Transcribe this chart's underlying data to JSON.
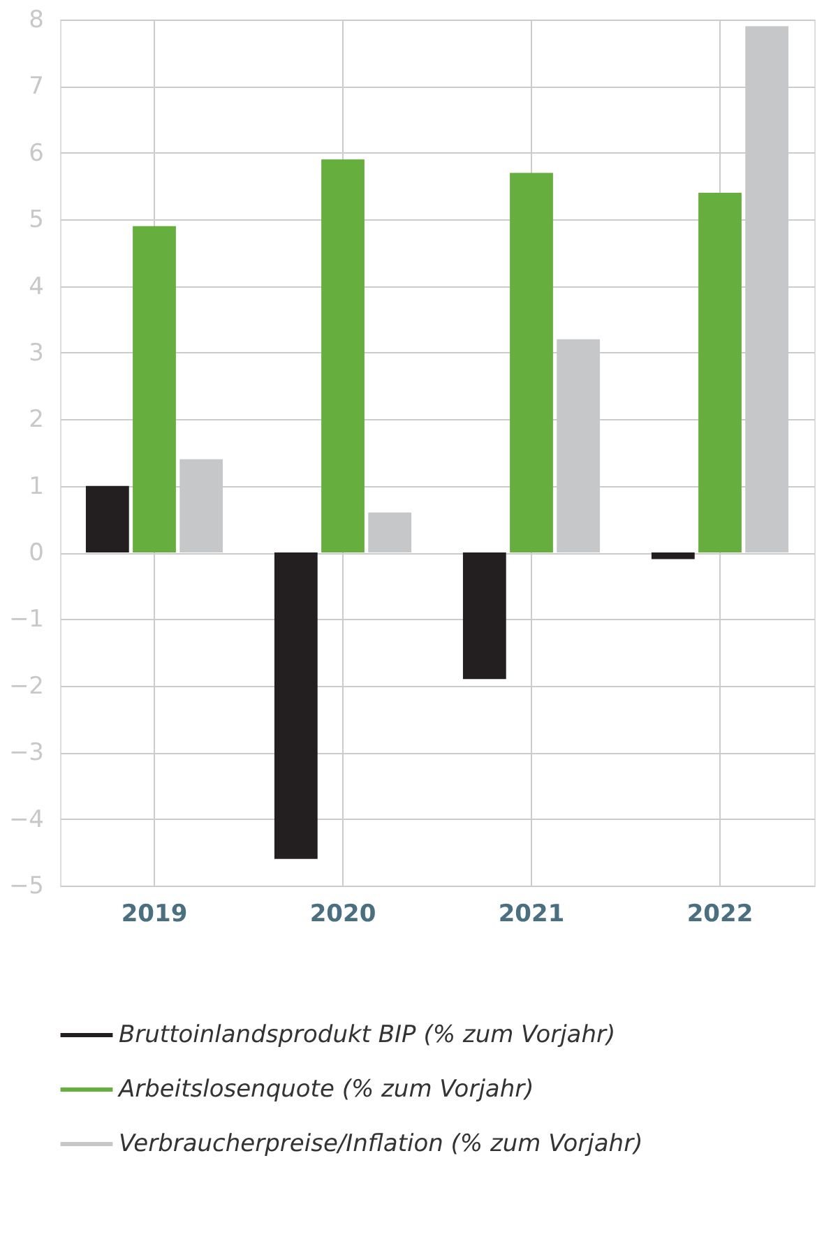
{
  "chart_data": {
    "type": "bar",
    "categories": [
      "2019",
      "2020",
      "2021",
      "2022"
    ],
    "series": [
      {
        "name": "Bruttoinlandsprodukt BIP (% zum Vorjahr)",
        "color": "#231f20",
        "values": [
          1.0,
          -4.6,
          -1.9,
          -0.1
        ]
      },
      {
        "name": "Arbeitslosenquote (% zum Vorjahr)",
        "color": "#66ae3e",
        "values": [
          4.9,
          5.9,
          5.7,
          5.4
        ]
      },
      {
        "name": "Verbraucherpreise/Inflation (% zum Vorjahr)",
        "color": "#c6c7c9",
        "values": [
          1.4,
          0.6,
          3.2,
          7.9
        ]
      }
    ],
    "ylim": [
      -5,
      8
    ],
    "yticks": [
      -5,
      -4,
      -3,
      -2,
      -1,
      0,
      1,
      2,
      3,
      4,
      5,
      6,
      7,
      8
    ],
    "grid": true,
    "legend": "bottom"
  }
}
